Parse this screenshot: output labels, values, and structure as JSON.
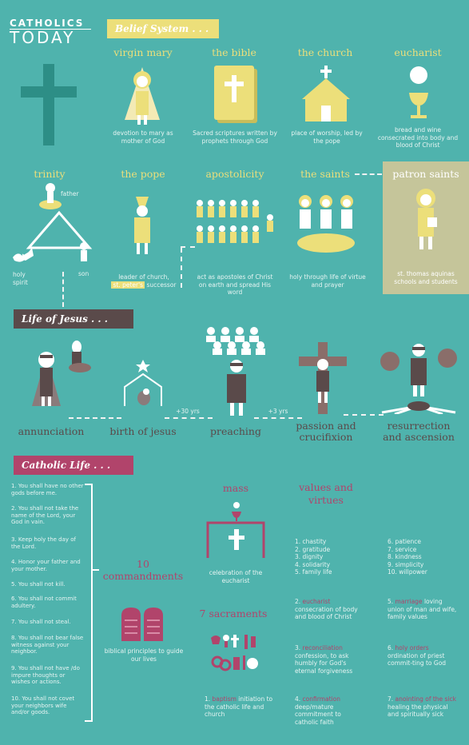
{
  "logo": {
    "line1": "CATHOLICS",
    "line2": "TODAY"
  },
  "belief_system": {
    "banner": "Belief System . . .",
    "items": [
      {
        "title": "virgin mary",
        "caption": "devotion to mary as mother of God"
      },
      {
        "title": "the bible",
        "caption": "Sacred scriptures written by prophets through God"
      },
      {
        "title": "the church",
        "caption": "place of worship, led by the pope"
      },
      {
        "title": "eucharist",
        "caption": "bread and wine consecrated into body and blood of Christ"
      },
      {
        "title": "trinity",
        "father": "father",
        "son": "son",
        "holy_spirit": "holy spirit"
      },
      {
        "title": "the pope",
        "caption_a": "leader of church,",
        "caption_b": "st. peter's",
        "caption_c": "successor"
      },
      {
        "title": "apostolicity",
        "caption": "act as apostoles of Christ on earth and spread His word"
      },
      {
        "title": "the saints",
        "caption": "holy through life of virtue and prayer"
      },
      {
        "title": "patron saints",
        "caption": "st. thomas aquinas schools and students"
      }
    ]
  },
  "life_of_jesus": {
    "banner": "Life of Jesus . . .",
    "events": [
      "annunciation",
      "birth of jesus",
      "preaching",
      "passion and crucifixion",
      "resurrection and ascension"
    ],
    "gap1": "+30 yrs",
    "gap2": "+3 yrs"
  },
  "catholic_life": {
    "banner": "Catholic Life . . .",
    "commandments_title": "10 commandments",
    "commandments_caption": "biblical principles to guide our lives",
    "commandments": [
      "1. You shall have no other gods before me.",
      "2. You shall not take the name of the Lord, your God in vain.",
      "3. Keep holy the day of the Lord.",
      "4. Honor your father and your mother.",
      "5. You shall not kill.",
      "6. You shall not commit adultery.",
      "7. You shall not steal.",
      "8. You shall not bear false witness against your neighbor.",
      "9. You shall not have /do impure thoughts or wishes or actions.",
      "10. You shall not covet your neighbors wife and/or goods."
    ],
    "mass_title": "mass",
    "mass_caption": "celebration of the eucharist",
    "sacraments_title": "7 sacraments",
    "values_title": "values and virtues",
    "values_col1": [
      "1. chastity",
      "2. gratitude",
      "3. dignity",
      "4. solidarity",
      "5. family life"
    ],
    "values_col2": [
      "6. patience",
      "7. service",
      "8. kindness",
      "9. simplicity",
      "10. willpower"
    ],
    "sacraments": [
      {
        "num": "1.",
        "name": "baptism",
        "desc": "initiation to the catholic life and church"
      },
      {
        "num": "2.",
        "name": "eucharist",
        "desc": "consecration of body and blood of Christ"
      },
      {
        "num": "3.",
        "name": "reconciliation",
        "desc": "confession, to ask humbly for God's eternal forgiveness"
      },
      {
        "num": "4.",
        "name": "confirmation",
        "desc": "deep/mature commitment to catholic faith"
      },
      {
        "num": "5.",
        "name": "marriage",
        "desc": "loving union of man and wife, family values"
      },
      {
        "num": "6.",
        "name": "holy orders",
        "desc": "ordination of priest commit-ting to God"
      },
      {
        "num": "7.",
        "name": "anointing of the sick",
        "desc": "healing the physical and spiritually sick"
      }
    ]
  },
  "colors": {
    "bg": "#4fb3ad",
    "yellow": "#ecdf7a",
    "magenta": "#b1446b",
    "brown": "#5a4a4a"
  }
}
